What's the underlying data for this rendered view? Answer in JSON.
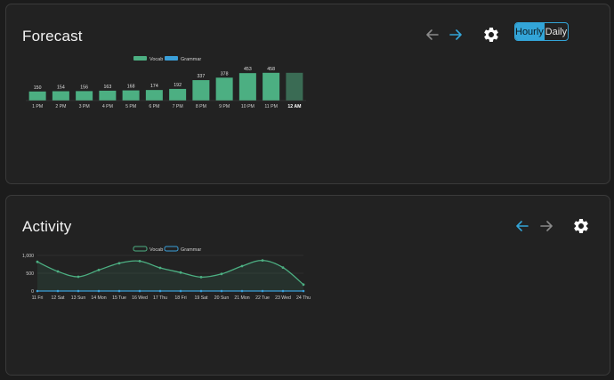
{
  "colors": {
    "vocab": "#4caf82",
    "grammar": "#3a9fd8",
    "accent": "#33a5d8"
  },
  "forecast": {
    "title": "Forecast",
    "toggle": {
      "hourly_label": "Hourly",
      "daily_label": "Daily",
      "selected": "Hourly"
    },
    "icons": {
      "prev": "arrow-left-icon",
      "next": "arrow-right-icon",
      "settings": "gear-icon"
    }
  },
  "activity": {
    "title": "Activity",
    "icons": {
      "prev": "arrow-left-icon",
      "next": "arrow-right-icon",
      "settings": "gear-icon"
    }
  },
  "chart_data": [
    {
      "type": "bar",
      "title": "Forecast",
      "legend": [
        "Vocab",
        "Grammar"
      ],
      "legend_position": "top-center",
      "categories": [
        "1 PM",
        "2 PM",
        "3 PM",
        "4 PM",
        "5 PM",
        "6 PM",
        "7 PM",
        "8 PM",
        "9 PM",
        "10 PM",
        "11 PM",
        "12 AM"
      ],
      "highlight_category": "12 AM",
      "series": [
        {
          "name": "Vocab",
          "values": [
            150,
            154,
            156,
            163,
            168,
            174,
            192,
            337,
            378,
            453,
            458,
            458
          ],
          "labels": [
            "150",
            "154",
            "156",
            "163",
            "168",
            "174",
            "192",
            "337",
            "378",
            "453",
            "458",
            ""
          ]
        },
        {
          "name": "Grammar",
          "values": [
            0,
            0,
            0,
            0,
            0,
            0,
            0,
            0,
            0,
            0,
            0,
            0
          ]
        }
      ],
      "ylim": [
        0,
        470
      ],
      "grid": false
    },
    {
      "type": "area",
      "title": "Activity",
      "legend": [
        "Vocab",
        "Grammar"
      ],
      "legend_position": "top-center",
      "categories": [
        "11 Fri",
        "12 Sat",
        "13 Sun",
        "14 Mon",
        "15 Tue",
        "16 Wed",
        "17 Thu",
        "18 Fri",
        "19 Sat",
        "20 Sun",
        "21 Mon",
        "22 Tue",
        "23 Wed",
        "24 Thu"
      ],
      "series": [
        {
          "name": "Vocab",
          "values": [
            820,
            550,
            400,
            590,
            780,
            840,
            650,
            520,
            390,
            480,
            700,
            860,
            660,
            180
          ]
        },
        {
          "name": "Grammar",
          "values": [
            0,
            0,
            0,
            0,
            0,
            0,
            0,
            0,
            0,
            0,
            0,
            0,
            0,
            0
          ]
        }
      ],
      "yticks": [
        "1,000",
        "500",
        "0"
      ],
      "ylim": [
        0,
        1000
      ],
      "grid": true
    }
  ]
}
